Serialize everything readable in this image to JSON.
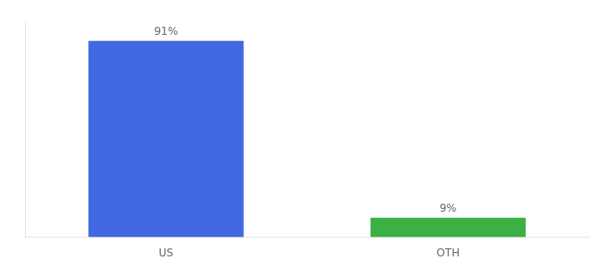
{
  "chart_data": {
    "type": "bar",
    "categories": [
      "US",
      "OTH"
    ],
    "values": [
      91,
      9
    ],
    "colors": [
      "#4169e1",
      "#3cb043"
    ],
    "value_labels": [
      "91%",
      "9%"
    ],
    "data_labels": true,
    "ylim": [
      0,
      100
    ],
    "grid": false,
    "tick_labels": "x"
  }
}
